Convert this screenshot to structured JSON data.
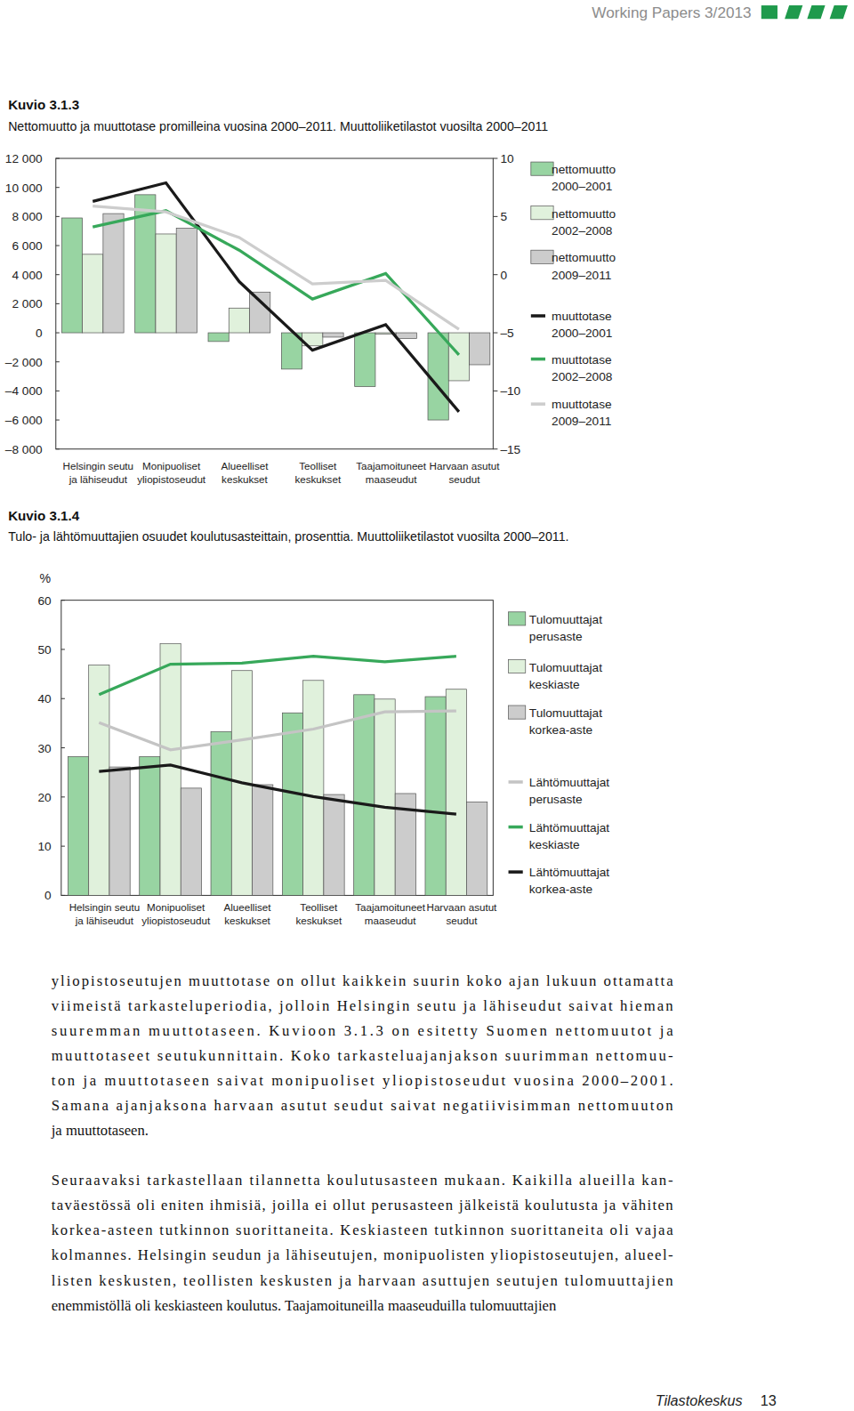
{
  "header": "Working Papers 3/2013",
  "chart_data": [
    {
      "type": "bar",
      "title": "Kuvio 3.1.3",
      "subtitle": "Nettomuutto ja muuttotase promilleina vuosina 2000–2011. Muuttoliiketilastot vuosilta 2000–2011",
      "categories": [
        "Helsingin seutu ja lähiseudut",
        "Monipuoliset yliopistoseudut",
        "Alueelliset keskukset",
        "Teolliset keskukset",
        "Taajamoituneet maaseudut",
        "Harvaan asutut seudut"
      ],
      "series": [
        {
          "name": "nettomuutto 2000–2001",
          "type": "bar",
          "color": "#98d4a2",
          "values": [
            7900,
            9500,
            -600,
            -2500,
            -3700,
            -6000
          ]
        },
        {
          "name": "nettomuutto 2002–2008",
          "type": "bar",
          "color": "#e0f1dc",
          "values": [
            5400,
            6800,
            1700,
            -900,
            -100,
            -3300
          ]
        },
        {
          "name": "nettomuutto 2009–2011",
          "type": "bar",
          "color": "#cccccc",
          "values": [
            8200,
            7200,
            2800,
            -300,
            -400,
            -2200
          ]
        },
        {
          "name": "muuttotase 2000–2001",
          "type": "line",
          "axis": "y2",
          "color": "#1a1a1a",
          "values": [
            6.3,
            7.9,
            -0.6,
            -6.5,
            -4.3,
            -11.8
          ]
        },
        {
          "name": "muuttotase 2002–2008",
          "type": "line",
          "axis": "y2",
          "color": "#37a85a",
          "values": [
            4.1,
            5.5,
            2.1,
            -2.1,
            0.1,
            -6.9
          ]
        },
        {
          "name": "muuttotase 2009–2011",
          "type": "line",
          "axis": "y2",
          "color": "#cdcdcd",
          "values": [
            5.9,
            5.4,
            3.2,
            -0.8,
            -0.5,
            -4.7
          ]
        }
      ],
      "ylim": [
        -8000,
        12000
      ],
      "yticks": [
        {
          "value": -8000,
          "label": "–8 000"
        },
        {
          "value": -6000,
          "label": "–6 000"
        },
        {
          "value": -4000,
          "label": "–4 000"
        },
        {
          "value": -2000,
          "label": "–2 000"
        },
        0,
        {
          "value": 2000,
          "label": "2 000"
        },
        {
          "value": 4000,
          "label": "4 000"
        },
        {
          "value": 6000,
          "label": "6 000"
        },
        {
          "value": 8000,
          "label": "8 000"
        },
        {
          "value": 10000,
          "label": "10 000"
        },
        {
          "value": 12000,
          "label": "12 000"
        }
      ],
      "y2lim": [
        -15,
        10
      ],
      "y2ticks": [
        {
          "value": -15,
          "label": "–15"
        },
        {
          "value": -10,
          "label": "–10"
        },
        {
          "value": -5,
          "label": "–5"
        },
        0,
        5,
        10
      ],
      "legend": "right",
      "grid": false
    },
    {
      "type": "bar",
      "title": "Kuvio 3.1.4",
      "subtitle": "Tulo- ja lähtömuuttajien osuudet koulutusasteittain, prosenttia. Muuttoliiketilastot vuosilta 2000–2011.",
      "ylabel": "%",
      "categories": [
        "Helsingin seutu ja lähiseudut",
        "Monipuoliset yliopistoseudut",
        "Alueelliset keskukset",
        "Teolliset keskukset",
        "Taajamoituneet maaseudut",
        "Harvaan asutut seudut"
      ],
      "series": [
        {
          "name": "Tulomuuttajat perusaste",
          "type": "bar",
          "color": "#98d4a2",
          "values": [
            28.2,
            28.2,
            33.3,
            37.1,
            40.8,
            40.4
          ]
        },
        {
          "name": "Tulomuuttajat keskiaste",
          "type": "bar",
          "color": "#e0f1dc",
          "values": [
            46.8,
            51.2,
            45.7,
            43.7,
            39.9,
            41.9
          ]
        },
        {
          "name": "Tulomuuttajat korkea-aste",
          "type": "bar",
          "color": "#cccccc",
          "values": [
            26.1,
            21.8,
            22.5,
            20.5,
            20.7,
            19.0
          ]
        },
        {
          "name": "Lähtömuuttajat perusaste",
          "type": "line",
          "color": "#c4c4c4",
          "values": [
            35.1,
            29.6,
            31.6,
            33.8,
            37.3,
            37.5
          ]
        },
        {
          "name": "Lähtömuuttajat keskiaste",
          "type": "line",
          "color": "#37a85a",
          "values": [
            40.8,
            47.0,
            47.2,
            48.6,
            47.5,
            48.6
          ]
        },
        {
          "name": "Lähtömuuttajat korkea-aste",
          "type": "line",
          "color": "#1a1a1a",
          "values": [
            25.2,
            26.5,
            22.9,
            20.1,
            17.9,
            16.5
          ]
        }
      ],
      "ylim": [
        0,
        60
      ],
      "yticks": [
        0,
        10,
        20,
        30,
        40,
        50,
        60
      ],
      "legend": "right",
      "grid": false
    }
  ],
  "body": [
    [
      "yliopistoseutujen muuttotase on ollut kaikkein suurin koko ajan lukuun ottamatta",
      "viimeistä tarkasteluperiodia, jolloin Helsingin seutu ja lähiseudut saivat hieman",
      "suuremman muuttotaseen. Kuvioon 3.1.3 on esitetty Suomen nettomuutot ja",
      "muuttotaseet seutukunnittain. Koko tarkasteluajanjakson suurimman nettomuu-",
      "ton ja muuttotaseen saivat monipuoliset yliopistoseudut vuosina 2000–2001.",
      "Samana ajanjaksona harvaan asutut seudut saivat negatiivisimman nettomuuton",
      "ja muuttotaseen."
    ],
    [
      "Seuraavaksi tarkastellaan tilannetta koulutusasteen mukaan. Kaikilla alueilla kan-",
      "taväestössä oli eniten ihmisiä, joilla ei ollut perusasteen jälkeistä koulutusta ja vähiten",
      "korkea-asteen tutkinnon suorittaneita. Keskiasteen tutkinnon suorittaneita oli vajaa",
      "kolmannes. Helsingin seudun ja lähiseutujen, monipuolisten yliopistoseutujen, alueel-",
      "listen keskusten, teollisten keskusten ja harvaan asuttujen seutujen tulomuuttajien",
      "enemmistöllä oli keskiasteen koulutus. Taajamoituneilla maaseuduilla tulomuuttajien"
    ]
  ],
  "footer": {
    "publisher": "Tilastokeskus",
    "page": "13"
  }
}
